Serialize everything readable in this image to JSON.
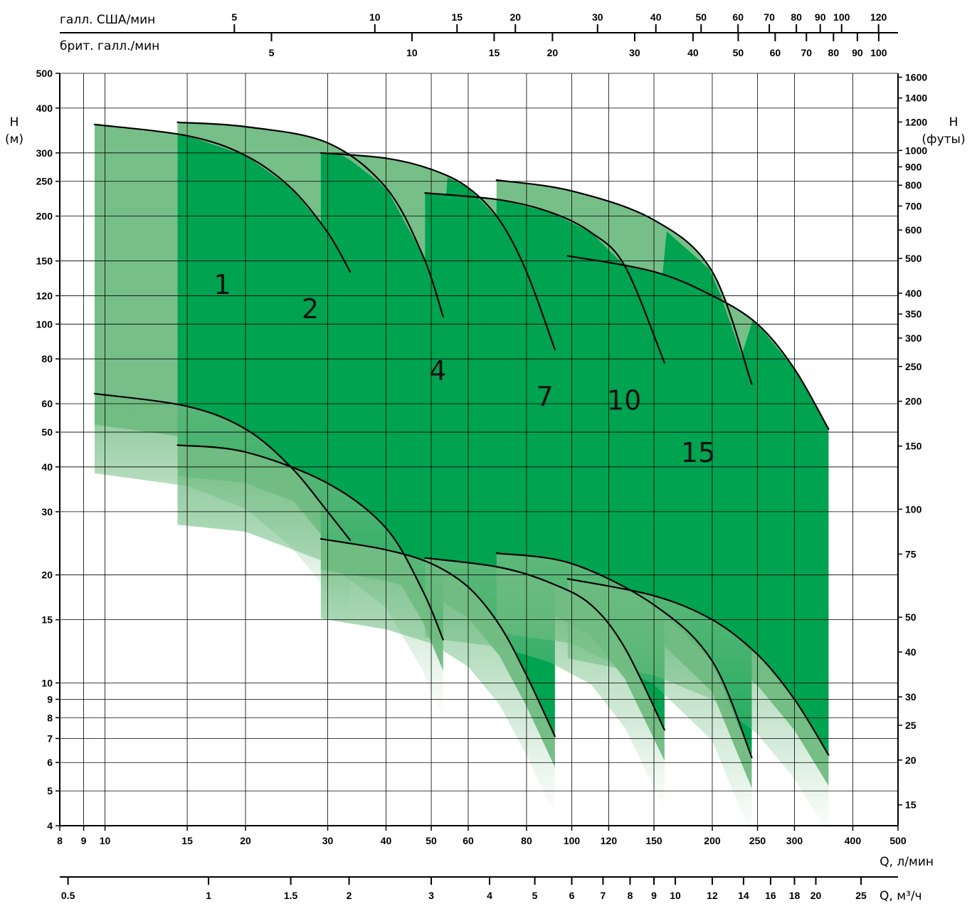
{
  "chart_data": {
    "type": "line",
    "x_scale": "log",
    "y_scale": "log",
    "xlabel": "Q, л/мин",
    "ylabel": "H (м)",
    "xlim": [
      8,
      500
    ],
    "ylim": [
      4,
      500
    ],
    "x_ticks": [
      8,
      9,
      10,
      15,
      20,
      30,
      40,
      50,
      60,
      80,
      100,
      120,
      150,
      200,
      250,
      300,
      400,
      500
    ],
    "y_ticks": [
      4,
      5,
      6,
      7,
      8,
      9,
      10,
      15,
      20,
      30,
      40,
      50,
      60,
      80,
      100,
      120,
      150,
      200,
      250,
      300,
      400,
      500
    ],
    "left_axis": {
      "line1": "H",
      "line2": "(м)"
    },
    "right_axis": {
      "line1": "H",
      "line2": "(футы)",
      "ticks": [
        15,
        20,
        25,
        30,
        40,
        50,
        75,
        100,
        150,
        200,
        250,
        300,
        350,
        400,
        500,
        600,
        700,
        800,
        900,
        1000,
        1200,
        1400,
        1600
      ]
    },
    "top_axis_us": {
      "label": "галл. США/мин",
      "ticks": [
        5,
        10,
        15,
        20,
        30,
        40,
        50,
        60,
        70,
        80,
        90,
        100,
        120
      ]
    },
    "top_axis_uk": {
      "label": "брит. галл./мин",
      "ticks": [
        5,
        10,
        15,
        20,
        30,
        40,
        50,
        60,
        70,
        80,
        90,
        100
      ]
    },
    "bottom_axis_m3h": {
      "label": "Q, м³/ч",
      "ticks": [
        "0.5",
        "1",
        "1.5",
        "2",
        "3",
        "4",
        "5",
        "6",
        "7",
        "8",
        "9",
        "10",
        "12",
        "14",
        "16",
        "18",
        "20",
        "25"
      ]
    },
    "series": [
      {
        "name": "1",
        "qmin": 9.5,
        "qmax": 33.5,
        "upper": [
          [
            9.5,
            360
          ],
          [
            15,
            335
          ],
          [
            20,
            295
          ],
          [
            25,
            240
          ],
          [
            30,
            180
          ],
          [
            33.5,
            140
          ]
        ],
        "lower": [
          [
            9.5,
            64
          ],
          [
            15,
            59
          ],
          [
            20,
            51
          ],
          [
            25,
            40
          ],
          [
            30,
            30
          ],
          [
            33.5,
            25
          ]
        ]
      },
      {
        "name": "2",
        "qmin": 14.3,
        "qmax": 53,
        "upper": [
          [
            14.3,
            365
          ],
          [
            20,
            355
          ],
          [
            30,
            320
          ],
          [
            40,
            240
          ],
          [
            48,
            155
          ],
          [
            53,
            105
          ]
        ],
        "lower": [
          [
            14.3,
            46
          ],
          [
            20,
            44
          ],
          [
            30,
            36
          ],
          [
            40,
            27
          ],
          [
            48,
            18
          ],
          [
            53,
            13.2
          ]
        ]
      },
      {
        "name": "4",
        "qmin": 29,
        "qmax": 92,
        "upper": [
          [
            29,
            300
          ],
          [
            40,
            290
          ],
          [
            50,
            270
          ],
          [
            60,
            240
          ],
          [
            70,
            195
          ],
          [
            80,
            140
          ],
          [
            92,
            85
          ]
        ],
        "lower": [
          [
            29,
            25.2
          ],
          [
            40,
            23.5
          ],
          [
            50,
            21.5
          ],
          [
            60,
            18.5
          ],
          [
            70,
            14.5
          ],
          [
            80,
            10.5
          ],
          [
            92,
            7.1
          ]
        ]
      },
      {
        "name": "7",
        "qmin": 48.5,
        "qmax": 158,
        "upper": [
          [
            48.5,
            232
          ],
          [
            70,
            222
          ],
          [
            90,
            205
          ],
          [
            110,
            180
          ],
          [
            130,
            145
          ],
          [
            158,
            78
          ]
        ],
        "lower": [
          [
            48.5,
            22.3
          ],
          [
            70,
            21
          ],
          [
            90,
            19
          ],
          [
            110,
            16.5
          ],
          [
            130,
            12.5
          ],
          [
            158,
            7.4
          ]
        ]
      },
      {
        "name": "10",
        "qmin": 69,
        "qmax": 243,
        "upper": [
          [
            69,
            252
          ],
          [
            100,
            235
          ],
          [
            150,
            195
          ],
          [
            200,
            140
          ],
          [
            243,
            68
          ]
        ],
        "lower": [
          [
            69,
            23
          ],
          [
            100,
            21.5
          ],
          [
            150,
            16.5
          ],
          [
            200,
            11.5
          ],
          [
            243,
            6.2
          ]
        ]
      },
      {
        "name": "15",
        "qmin": 98,
        "qmax": 355,
        "upper": [
          [
            98,
            155
          ],
          [
            150,
            140
          ],
          [
            200,
            120
          ],
          [
            250,
            100
          ],
          [
            300,
            75
          ],
          [
            355,
            51
          ]
        ],
        "lower": [
          [
            98,
            19.5
          ],
          [
            150,
            17.5
          ],
          [
            200,
            15
          ],
          [
            250,
            12
          ],
          [
            300,
            9
          ],
          [
            355,
            6.3
          ]
        ]
      }
    ]
  },
  "colors": {
    "band_light": "#70bc82",
    "band_dark": "#00a350",
    "ink": "#000000"
  }
}
